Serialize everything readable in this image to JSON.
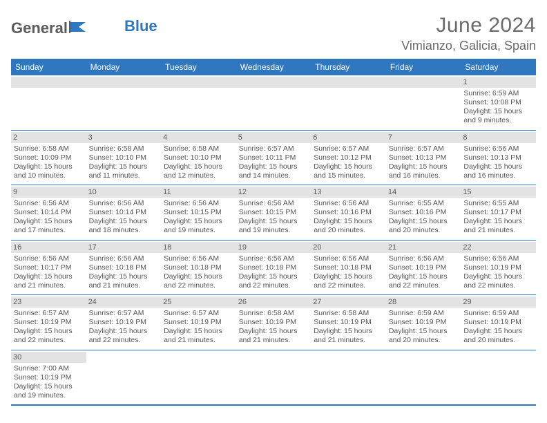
{
  "logo": {
    "text1": "General",
    "text2": "Blue"
  },
  "title": {
    "month": "June 2024",
    "location": "Vimianzo, Galicia, Spain"
  },
  "dayNames": [
    "Sunday",
    "Monday",
    "Tuesday",
    "Wednesday",
    "Thursday",
    "Friday",
    "Saturday"
  ],
  "colors": {
    "accent": "#2f78c0",
    "headerBg": "#2f78c0",
    "numBg": "#e3e3e3",
    "text": "#555555"
  },
  "days": [
    {
      "n": "1",
      "sr": "Sunrise: 6:59 AM",
      "ss": "Sunset: 10:08 PM",
      "d1": "Daylight: 15 hours",
      "d2": "and 9 minutes."
    },
    {
      "n": "2",
      "sr": "Sunrise: 6:58 AM",
      "ss": "Sunset: 10:09 PM",
      "d1": "Daylight: 15 hours",
      "d2": "and 10 minutes."
    },
    {
      "n": "3",
      "sr": "Sunrise: 6:58 AM",
      "ss": "Sunset: 10:10 PM",
      "d1": "Daylight: 15 hours",
      "d2": "and 11 minutes."
    },
    {
      "n": "4",
      "sr": "Sunrise: 6:58 AM",
      "ss": "Sunset: 10:10 PM",
      "d1": "Daylight: 15 hours",
      "d2": "and 12 minutes."
    },
    {
      "n": "5",
      "sr": "Sunrise: 6:57 AM",
      "ss": "Sunset: 10:11 PM",
      "d1": "Daylight: 15 hours",
      "d2": "and 14 minutes."
    },
    {
      "n": "6",
      "sr": "Sunrise: 6:57 AM",
      "ss": "Sunset: 10:12 PM",
      "d1": "Daylight: 15 hours",
      "d2": "and 15 minutes."
    },
    {
      "n": "7",
      "sr": "Sunrise: 6:57 AM",
      "ss": "Sunset: 10:13 PM",
      "d1": "Daylight: 15 hours",
      "d2": "and 16 minutes."
    },
    {
      "n": "8",
      "sr": "Sunrise: 6:56 AM",
      "ss": "Sunset: 10:13 PM",
      "d1": "Daylight: 15 hours",
      "d2": "and 16 minutes."
    },
    {
      "n": "9",
      "sr": "Sunrise: 6:56 AM",
      "ss": "Sunset: 10:14 PM",
      "d1": "Daylight: 15 hours",
      "d2": "and 17 minutes."
    },
    {
      "n": "10",
      "sr": "Sunrise: 6:56 AM",
      "ss": "Sunset: 10:14 PM",
      "d1": "Daylight: 15 hours",
      "d2": "and 18 minutes."
    },
    {
      "n": "11",
      "sr": "Sunrise: 6:56 AM",
      "ss": "Sunset: 10:15 PM",
      "d1": "Daylight: 15 hours",
      "d2": "and 19 minutes."
    },
    {
      "n": "12",
      "sr": "Sunrise: 6:56 AM",
      "ss": "Sunset: 10:15 PM",
      "d1": "Daylight: 15 hours",
      "d2": "and 19 minutes."
    },
    {
      "n": "13",
      "sr": "Sunrise: 6:56 AM",
      "ss": "Sunset: 10:16 PM",
      "d1": "Daylight: 15 hours",
      "d2": "and 20 minutes."
    },
    {
      "n": "14",
      "sr": "Sunrise: 6:55 AM",
      "ss": "Sunset: 10:16 PM",
      "d1": "Daylight: 15 hours",
      "d2": "and 20 minutes."
    },
    {
      "n": "15",
      "sr": "Sunrise: 6:55 AM",
      "ss": "Sunset: 10:17 PM",
      "d1": "Daylight: 15 hours",
      "d2": "and 21 minutes."
    },
    {
      "n": "16",
      "sr": "Sunrise: 6:56 AM",
      "ss": "Sunset: 10:17 PM",
      "d1": "Daylight: 15 hours",
      "d2": "and 21 minutes."
    },
    {
      "n": "17",
      "sr": "Sunrise: 6:56 AM",
      "ss": "Sunset: 10:18 PM",
      "d1": "Daylight: 15 hours",
      "d2": "and 21 minutes."
    },
    {
      "n": "18",
      "sr": "Sunrise: 6:56 AM",
      "ss": "Sunset: 10:18 PM",
      "d1": "Daylight: 15 hours",
      "d2": "and 22 minutes."
    },
    {
      "n": "19",
      "sr": "Sunrise: 6:56 AM",
      "ss": "Sunset: 10:18 PM",
      "d1": "Daylight: 15 hours",
      "d2": "and 22 minutes."
    },
    {
      "n": "20",
      "sr": "Sunrise: 6:56 AM",
      "ss": "Sunset: 10:18 PM",
      "d1": "Daylight: 15 hours",
      "d2": "and 22 minutes."
    },
    {
      "n": "21",
      "sr": "Sunrise: 6:56 AM",
      "ss": "Sunset: 10:19 PM",
      "d1": "Daylight: 15 hours",
      "d2": "and 22 minutes."
    },
    {
      "n": "22",
      "sr": "Sunrise: 6:56 AM",
      "ss": "Sunset: 10:19 PM",
      "d1": "Daylight: 15 hours",
      "d2": "and 22 minutes."
    },
    {
      "n": "23",
      "sr": "Sunrise: 6:57 AM",
      "ss": "Sunset: 10:19 PM",
      "d1": "Daylight: 15 hours",
      "d2": "and 22 minutes."
    },
    {
      "n": "24",
      "sr": "Sunrise: 6:57 AM",
      "ss": "Sunset: 10:19 PM",
      "d1": "Daylight: 15 hours",
      "d2": "and 22 minutes."
    },
    {
      "n": "25",
      "sr": "Sunrise: 6:57 AM",
      "ss": "Sunset: 10:19 PM",
      "d1": "Daylight: 15 hours",
      "d2": "and 21 minutes."
    },
    {
      "n": "26",
      "sr": "Sunrise: 6:58 AM",
      "ss": "Sunset: 10:19 PM",
      "d1": "Daylight: 15 hours",
      "d2": "and 21 minutes."
    },
    {
      "n": "27",
      "sr": "Sunrise: 6:58 AM",
      "ss": "Sunset: 10:19 PM",
      "d1": "Daylight: 15 hours",
      "d2": "and 21 minutes."
    },
    {
      "n": "28",
      "sr": "Sunrise: 6:59 AM",
      "ss": "Sunset: 10:19 PM",
      "d1": "Daylight: 15 hours",
      "d2": "and 20 minutes."
    },
    {
      "n": "29",
      "sr": "Sunrise: 6:59 AM",
      "ss": "Sunset: 10:19 PM",
      "d1": "Daylight: 15 hours",
      "d2": "and 20 minutes."
    },
    {
      "n": "30",
      "sr": "Sunrise: 7:00 AM",
      "ss": "Sunset: 10:19 PM",
      "d1": "Daylight: 15 hours",
      "d2": "and 19 minutes."
    }
  ]
}
